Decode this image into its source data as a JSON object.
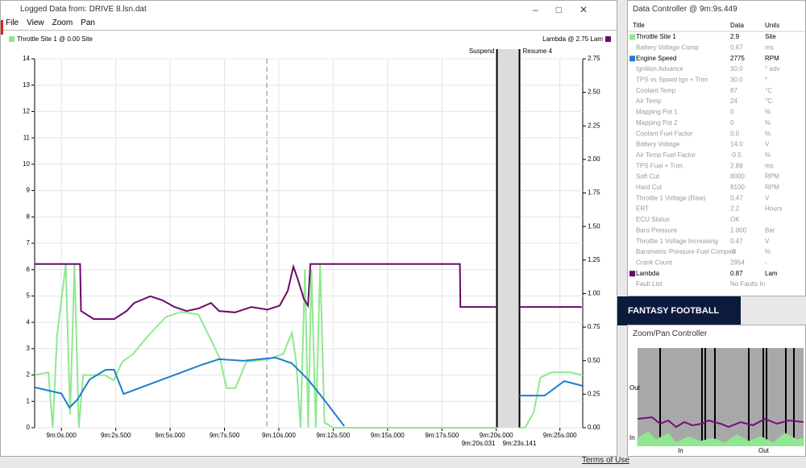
{
  "window": {
    "title": "Logged Data from: DRIVE 8.lsn.dat",
    "menu": [
      "File",
      "View",
      "Zoom",
      "Pan"
    ]
  },
  "chart": {
    "type": "line",
    "xlim": [
      -1.23,
      26.05
    ],
    "xticks": [
      {
        "value": 0,
        "label": "9m:0s.000"
      },
      {
        "value": 2.5,
        "label": "9m:2s.500"
      },
      {
        "value": 5,
        "label": "9m:5s.000"
      },
      {
        "value": 7.5,
        "label": "9m:7s.500"
      },
      {
        "value": 10,
        "label": "9m:10s.000"
      },
      {
        "value": 12.5,
        "label": "9m:12s.500"
      },
      {
        "value": 15,
        "label": "9m:15s.000"
      },
      {
        "value": 17.5,
        "label": "9m:17s.500"
      },
      {
        "value": 20,
        "label": "9m:20s.000"
      },
      {
        "value": 25,
        "label": "9m:25s.000"
      }
    ],
    "gap": {
      "start": {
        "value": 20.031,
        "label": "9m:20s.031"
      },
      "end": {
        "value": 23.141,
        "label": "9m:23s.141"
      },
      "start_name": "Suspend",
      "end_name": "Resume 4"
    },
    "cursor": 9.449,
    "ylim": [
      0,
      14
    ],
    "yticks": [
      0,
      1,
      2,
      3,
      4,
      5,
      6,
      7,
      8,
      9,
      10,
      11,
      12,
      13,
      14
    ],
    "y2lim": [
      0,
      2.75
    ],
    "y2ticks": [
      {
        "value": 0,
        "label": "0.00"
      },
      {
        "value": 0.25,
        "label": "0.25"
      },
      {
        "value": 0.5,
        "label": "0.50"
      },
      {
        "value": 0.75,
        "label": "0.75"
      },
      {
        "value": 1,
        "label": "1.00"
      },
      {
        "value": 1.25,
        "label": "1.25"
      },
      {
        "value": 1.5,
        "label": "1.50"
      },
      {
        "value": 1.75,
        "label": "1.75"
      },
      {
        "value": 2,
        "label": "2.00"
      },
      {
        "value": 2.25,
        "label": "2.25"
      },
      {
        "value": 2.5,
        "label": "2.50"
      },
      {
        "value": 2.75,
        "label": "2.75"
      }
    ],
    "series": [
      {
        "name": "Throttle Site 1 @ 0.00 Site",
        "color": "#8fe88f",
        "legend": "left",
        "x": [
          -1.23,
          -0.6,
          -0.4,
          -0.2,
          0.2,
          0.4,
          0.6,
          0.8,
          1.0,
          1.4,
          2.0,
          2.4,
          2.8,
          3.3,
          4.0,
          4.8,
          5.5,
          6.3,
          6.9,
          7.3,
          7.6,
          8.0,
          8.5,
          9.5,
          10.2,
          10.6,
          10.8,
          11.0,
          11.2,
          11.35,
          11.5,
          11.7,
          11.9,
          12.1,
          12.5,
          14,
          20.031,
          null,
          23.141,
          23.4,
          23.8,
          24.1,
          24.6,
          25.5,
          26.0
        ],
        "values": [
          2.0,
          2.1,
          0,
          3.5,
          6.2,
          0.5,
          6.2,
          0,
          2.0,
          2.0,
          2.0,
          1.8,
          2.5,
          2.8,
          3.5,
          4.2,
          4.4,
          4.3,
          3.3,
          2.6,
          1.5,
          1.5,
          2.5,
          2.6,
          2.8,
          3.6,
          2.5,
          0,
          6.0,
          0,
          6.0,
          0,
          6.2,
          0.2,
          0,
          0,
          0,
          null,
          0,
          0,
          0.6,
          1.9,
          2.1,
          2.1,
          2.0
        ]
      },
      {
        "color": "#1e7fd0",
        "x": [
          -1.23,
          0,
          0.37,
          0.74,
          1.3,
          2.04,
          2.42,
          2.86,
          4.65,
          6.5,
          7.25,
          8.36,
          9.85,
          10.59,
          11.34,
          12.08,
          13.01,
          null,
          23.141,
          24.3,
          25.2,
          26.04
        ],
        "values": [
          1.53,
          1.3,
          0.76,
          1.07,
          1.83,
          2.2,
          2.2,
          1.28,
          1.83,
          2.4,
          2.6,
          2.54,
          2.66,
          2.45,
          1.83,
          1.07,
          0.06,
          null,
          1.22,
          1.22,
          1.77,
          1.59
        ]
      },
      {
        "name": "Lambda @ 2.75 Lam",
        "color": "#6a0a6a",
        "legend": "right",
        "axis": "y2",
        "x": [
          -1.23,
          0.86,
          0.9,
          1.49,
          2.42,
          3.0,
          3.35,
          4.09,
          4.65,
          5.2,
          5.76,
          6.32,
          6.88,
          7.25,
          7.99,
          8.74,
          9.48,
          10.04,
          10.41,
          10.67,
          10.89,
          11.15,
          11.34,
          11.45,
          18.33,
          18.35,
          20.031,
          null,
          23.141,
          26.0
        ],
        "values": [
          1.22,
          1.22,
          0.87,
          0.81,
          0.81,
          0.87,
          0.93,
          0.98,
          0.95,
          0.9,
          0.87,
          0.89,
          0.93,
          0.87,
          0.86,
          0.9,
          0.88,
          0.91,
          1.02,
          1.2,
          1.1,
          0.96,
          0.91,
          1.22,
          1.22,
          0.9,
          0.9,
          null,
          0.9,
          0.9
        ]
      }
    ]
  },
  "data_controller": {
    "title": "Data Controller @ 9m:9s.449",
    "columns": [
      "Title",
      "Data",
      "Units"
    ],
    "rows": [
      {
        "title": "Throttle Site 1",
        "data": "2.9",
        "units": "Site",
        "color": "#8fe88f"
      },
      {
        "title": "Battery Voltage Comp",
        "data": "0.67",
        "units": "ms"
      },
      {
        "title": "Engine Speed",
        "data": "2775",
        "units": "RPM",
        "color": "#1e7fd0"
      },
      {
        "title": "Ignition Advance",
        "data": "30.0",
        "units": "° adv"
      },
      {
        "title": "TPS vs Speed Ign + Trim",
        "data": "30.0",
        "units": "°"
      },
      {
        "title": "Coolant Temp",
        "data": "87",
        "units": "°C"
      },
      {
        "title": "Air Temp",
        "data": "24",
        "units": "°C"
      },
      {
        "title": "Mapping Pot 1",
        "data": "0",
        "units": "%"
      },
      {
        "title": "Mapping Pot 2",
        "data": "0",
        "units": "%"
      },
      {
        "title": "Coolant Fuel Factor",
        "data": "0.0",
        "units": "%"
      },
      {
        "title": "Battery Voltage",
        "data": "14.0",
        "units": "V"
      },
      {
        "title": "Air Temp Fuel Factor",
        "data": "-0.5",
        "units": "%"
      },
      {
        "title": "TPS Fuel + Trim",
        "data": "2.89",
        "units": "ms"
      },
      {
        "title": "Soft Cut",
        "data": "8000",
        "units": "RPM"
      },
      {
        "title": "Hard Cut",
        "data": "8100",
        "units": "RPM"
      },
      {
        "title": "Throttle 1 Voltage (Raw)",
        "data": "0.47",
        "units": "V"
      },
      {
        "title": "ERT",
        "data": "2.2",
        "units": "Hours"
      },
      {
        "title": "ECU Status",
        "data": "OK"
      },
      {
        "title": "Baro Pressure",
        "data": "1.000",
        "units": "Bar"
      },
      {
        "title": "Throttle 1 Voltage Increasing",
        "data": "0.47",
        "units": "V"
      },
      {
        "title": "Barometric Pressure Fuel Compen",
        "data": "-0",
        "units": "%"
      },
      {
        "title": "Crank Count",
        "data": "2954",
        "units": "-"
      },
      {
        "title": "Lambda",
        "data": "0.87",
        "units": "Lam",
        "color": "#6a0a6a"
      },
      {
        "title": "Fault List",
        "data": "No Faults In"
      }
    ]
  },
  "zoom_pan": {
    "title": "Zoom/Pan Controller",
    "bottom_labels": [
      "In",
      "Out"
    ],
    "side_labels": [
      "Out",
      "In"
    ]
  },
  "background": {
    "banner": "FANTASY FOOTBALL",
    "link": "Terms of Use"
  }
}
